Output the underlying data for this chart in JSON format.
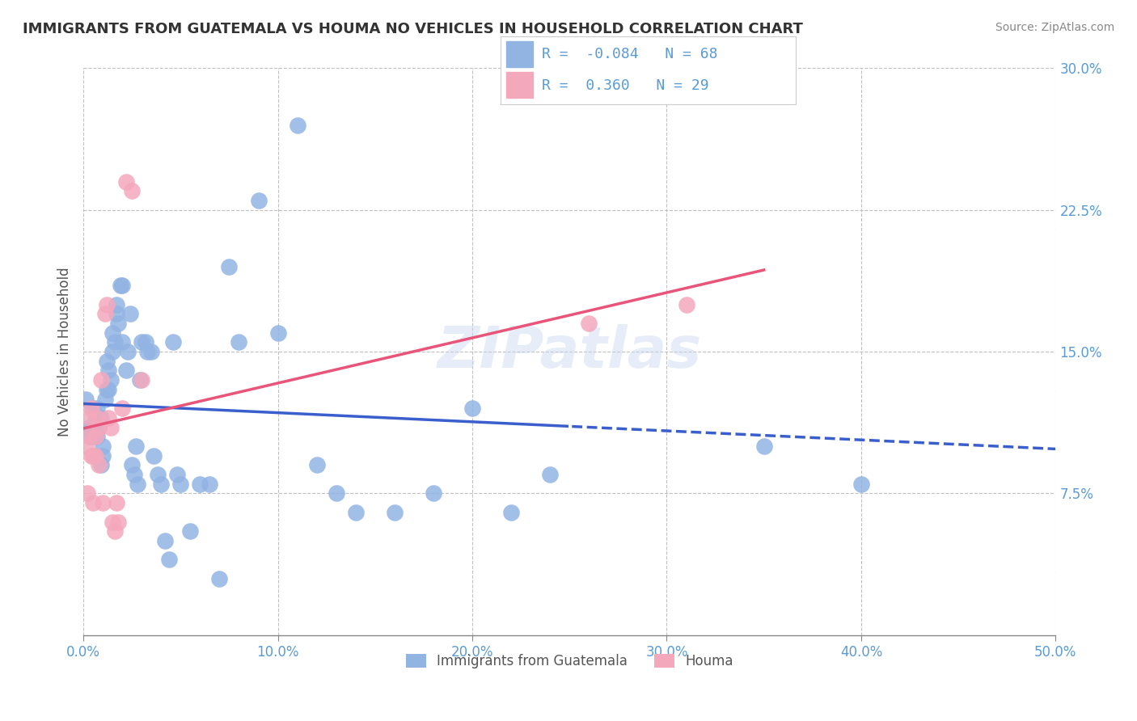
{
  "title": "IMMIGRANTS FROM GUATEMALA VS HOUMA NO VEHICLES IN HOUSEHOLD CORRELATION CHART",
  "source": "Source: ZipAtlas.com",
  "ylabel": "No Vehicles in Household",
  "legend_label1": "Immigrants from Guatemala",
  "legend_label2": "Houma",
  "R1": -0.084,
  "N1": 68,
  "R2": 0.36,
  "N2": 29,
  "color1": "#92b4e3",
  "color2": "#f4a8bc",
  "trend1_color": "#3a5fcd",
  "trend2_color": "#e8547a",
  "watermark": "ZIPatlas",
  "xlim": [
    0.0,
    0.5
  ],
  "ylim": [
    0.0,
    0.3
  ],
  "xticks": [
    0.0,
    0.1,
    0.2,
    0.3,
    0.4,
    0.5
  ],
  "yticks": [
    0.0,
    0.075,
    0.15,
    0.225,
    0.3
  ],
  "xtick_labels": [
    "0.0%",
    "10.0%",
    "20.0%",
    "30.0%",
    "40.0%",
    "50.0%"
  ],
  "ytick_labels_right": [
    "",
    "7.5%",
    "15.0%",
    "22.5%",
    "30.0%"
  ],
  "blue_x": [
    0.001,
    0.003,
    0.004,
    0.005,
    0.005,
    0.006,
    0.007,
    0.007,
    0.008,
    0.008,
    0.009,
    0.009,
    0.01,
    0.01,
    0.011,
    0.012,
    0.012,
    0.013,
    0.013,
    0.014,
    0.015,
    0.015,
    0.016,
    0.017,
    0.017,
    0.018,
    0.019,
    0.02,
    0.02,
    0.022,
    0.023,
    0.024,
    0.025,
    0.026,
    0.027,
    0.028,
    0.029,
    0.03,
    0.032,
    0.033,
    0.035,
    0.036,
    0.038,
    0.04,
    0.042,
    0.044,
    0.046,
    0.048,
    0.05,
    0.055,
    0.06,
    0.065,
    0.07,
    0.075,
    0.08,
    0.09,
    0.1,
    0.11,
    0.12,
    0.13,
    0.14,
    0.16,
    0.18,
    0.2,
    0.22,
    0.24,
    0.35,
    0.4
  ],
  "blue_y": [
    0.125,
    0.11,
    0.105,
    0.11,
    0.12,
    0.115,
    0.12,
    0.105,
    0.115,
    0.11,
    0.115,
    0.09,
    0.1,
    0.095,
    0.125,
    0.13,
    0.145,
    0.13,
    0.14,
    0.135,
    0.15,
    0.16,
    0.155,
    0.17,
    0.175,
    0.165,
    0.185,
    0.155,
    0.185,
    0.14,
    0.15,
    0.17,
    0.09,
    0.085,
    0.1,
    0.08,
    0.135,
    0.155,
    0.155,
    0.15,
    0.15,
    0.095,
    0.085,
    0.08,
    0.05,
    0.04,
    0.155,
    0.085,
    0.08,
    0.055,
    0.08,
    0.08,
    0.03,
    0.195,
    0.155,
    0.23,
    0.16,
    0.27,
    0.09,
    0.075,
    0.065,
    0.065,
    0.075,
    0.12,
    0.065,
    0.085,
    0.1,
    0.08
  ],
  "pink_x": [
    0.001,
    0.002,
    0.003,
    0.003,
    0.004,
    0.004,
    0.005,
    0.005,
    0.006,
    0.006,
    0.007,
    0.008,
    0.008,
    0.009,
    0.01,
    0.011,
    0.012,
    0.013,
    0.014,
    0.015,
    0.016,
    0.017,
    0.018,
    0.02,
    0.022,
    0.025,
    0.03,
    0.26,
    0.31
  ],
  "pink_y": [
    0.1,
    0.075,
    0.105,
    0.115,
    0.095,
    0.12,
    0.095,
    0.07,
    0.105,
    0.095,
    0.115,
    0.11,
    0.09,
    0.135,
    0.07,
    0.17,
    0.175,
    0.115,
    0.11,
    0.06,
    0.055,
    0.07,
    0.06,
    0.12,
    0.24,
    0.235,
    0.135,
    0.165,
    0.175
  ]
}
